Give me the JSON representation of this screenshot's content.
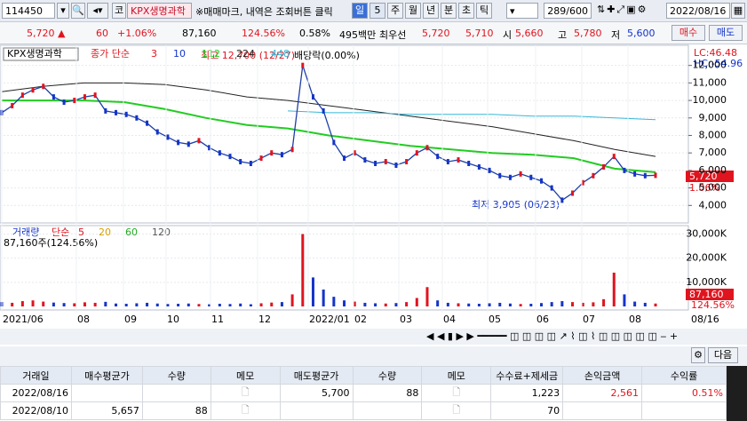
{
  "toolbar": {
    "code": "114450",
    "market": "코",
    "name": "KPX생명과학",
    "notice": "※매매마크, 내역은 조회버튼 클릭",
    "periods": [
      "일",
      "5",
      "주",
      "월",
      "년",
      "분",
      "초",
      "틱"
    ],
    "count": "289/600",
    "date": "2022/08/16"
  },
  "quote": {
    "price": "5,720 ▲",
    "change": "60",
    "change_rate": "+1.06%",
    "volume": "87,160",
    "volume_ratio": "124.56%",
    "turnover": "0.58%",
    "amount": "495백만",
    "best_label": "최우선",
    "ask": "5,720",
    "bid": "5,710",
    "open_label": "시",
    "open": "5,660",
    "high_label": "고",
    "high": "5,780",
    "low_label": "저",
    "low": "5,600",
    "buy": "매수",
    "sell": "매도"
  },
  "price_chart": {
    "stock": "KPX생명과학",
    "ma_label": "종가 단순",
    "ma_periods": [
      "3",
      "10",
      "112",
      "224",
      "448"
    ],
    "ma_colors": [
      "#e0141e",
      "#1434c8",
      "#22cc22",
      "#222222",
      "#35b8d8"
    ],
    "high_note": "최고 12,700 (12/27)",
    "dividend_note": "배당락(0.00%)",
    "low_note": "최저 3,905 (06/23)",
    "lc": "LC:46.48",
    "hc": "HC:-54.96",
    "last_price": "5,720",
    "last_rate": "1.06%",
    "ylim": [
      3000,
      13150
    ],
    "yticks": [
      {
        "value": 4000,
        "label": "4,000"
      },
      {
        "value": 5000,
        "label": "5,000"
      },
      {
        "value": 6000,
        "label": "6,000"
      },
      {
        "value": 7000,
        "label": "7,000"
      },
      {
        "value": 8000,
        "label": "8,000"
      },
      {
        "value": 9000,
        "label": "9,000"
      },
      {
        "value": 10000,
        "label": "10,000"
      },
      {
        "value": 11000,
        "label": "11,000"
      },
      {
        "value": 12000,
        "label": "12,000"
      }
    ],
    "closes": [
      9300,
      9700,
      10300,
      10600,
      10800,
      10200,
      9900,
      10000,
      10200,
      10300,
      9400,
      9300,
      9200,
      9000,
      8700,
      8200,
      7900,
      7600,
      7500,
      7700,
      7300,
      7000,
      6800,
      6500,
      6400,
      6700,
      7000,
      6900,
      7200,
      12000,
      10200,
      9400,
      7600,
      6700,
      7000,
      6600,
      6400,
      6500,
      6300,
      6500,
      7000,
      7300,
      6800,
      6500,
      6600,
      6400,
      6200,
      6000,
      5700,
      5600,
      5800,
      5600,
      5400,
      5000,
      4300,
      4700,
      5300,
      5700,
      6200,
      6800,
      6000,
      5800,
      5700,
      5720
    ],
    "ma112": [
      10000,
      10000,
      10000,
      9900,
      9500,
      9000,
      8600,
      8400,
      8000,
      7700,
      7400,
      7200,
      7000,
      6900,
      6700,
      6100,
      5900
    ],
    "ma224": [
      10500,
      10800,
      11000,
      11000,
      10900,
      10600,
      10200,
      10000,
      9700,
      9400,
      9100,
      8800,
      8500,
      8100,
      7700,
      7200,
      6800
    ],
    "ma448": [
      null,
      null,
      null,
      null,
      null,
      null,
      null,
      9400,
      9300,
      9300,
      9200,
      9200,
      9200,
      9100,
      9100,
      9000,
      8900
    ]
  },
  "volume_chart": {
    "label": "거래량",
    "ma_label": "단순",
    "ma_periods": [
      "5",
      "20",
      "60",
      "120"
    ],
    "ma_colors": [
      "#e0141e",
      "#d8a000",
      "#22aa22",
      "#555555"
    ],
    "summary": "87,160주(124.56%)",
    "last_volume": "87,160",
    "last_ratio": "124.56%",
    "ylim": [
      0,
      33500
    ],
    "yticks": [
      {
        "value": 10000,
        "label": "10,000K"
      },
      {
        "value": 20000,
        "label": "20,000K"
      },
      {
        "value": 30000,
        "label": "30,000K"
      }
    ],
    "values": [
      1800,
      1500,
      2200,
      2500,
      2000,
      1600,
      1400,
      1300,
      1700,
      1500,
      1900,
      1200,
      1100,
      1300,
      1500,
      1200,
      1000,
      1100,
      1200,
      1000,
      900,
      1100,
      1000,
      1200,
      900,
      1300,
      1600,
      1800,
      5000,
      30000,
      12000,
      7000,
      4000,
      2500,
      2000,
      1500,
      1300,
      1200,
      1400,
      1800,
      3500,
      8000,
      2500,
      1500,
      1300,
      1200,
      1100,
      1300,
      1500,
      1200,
      1000,
      1100,
      1400,
      1800,
      2200,
      1800,
      1500,
      1700,
      3000,
      14000,
      5000,
      2000,
      1500,
      1200
    ]
  },
  "x_axis": {
    "labels": [
      "2021/06",
      "08",
      "09",
      "10",
      "11",
      "12",
      "2022/01",
      "02",
      "03",
      "04",
      "05",
      "06",
      "07",
      "08"
    ],
    "current": "08/16"
  },
  "table": {
    "next": "다음",
    "headers": [
      "거래일",
      "매수평균가",
      "수량",
      "메모",
      "매도평균가",
      "수량",
      "메모",
      "수수료+제세금",
      "손익금액",
      "수익률"
    ],
    "rows": [
      [
        "2022/08/16",
        null,
        null,
        null,
        "5,700",
        "88",
        null,
        "1,223",
        "2,561",
        "0.51%"
      ],
      [
        "2022/08/10",
        "5,657",
        "88",
        null,
        null,
        null,
        null,
        "70",
        null,
        null
      ]
    ]
  }
}
